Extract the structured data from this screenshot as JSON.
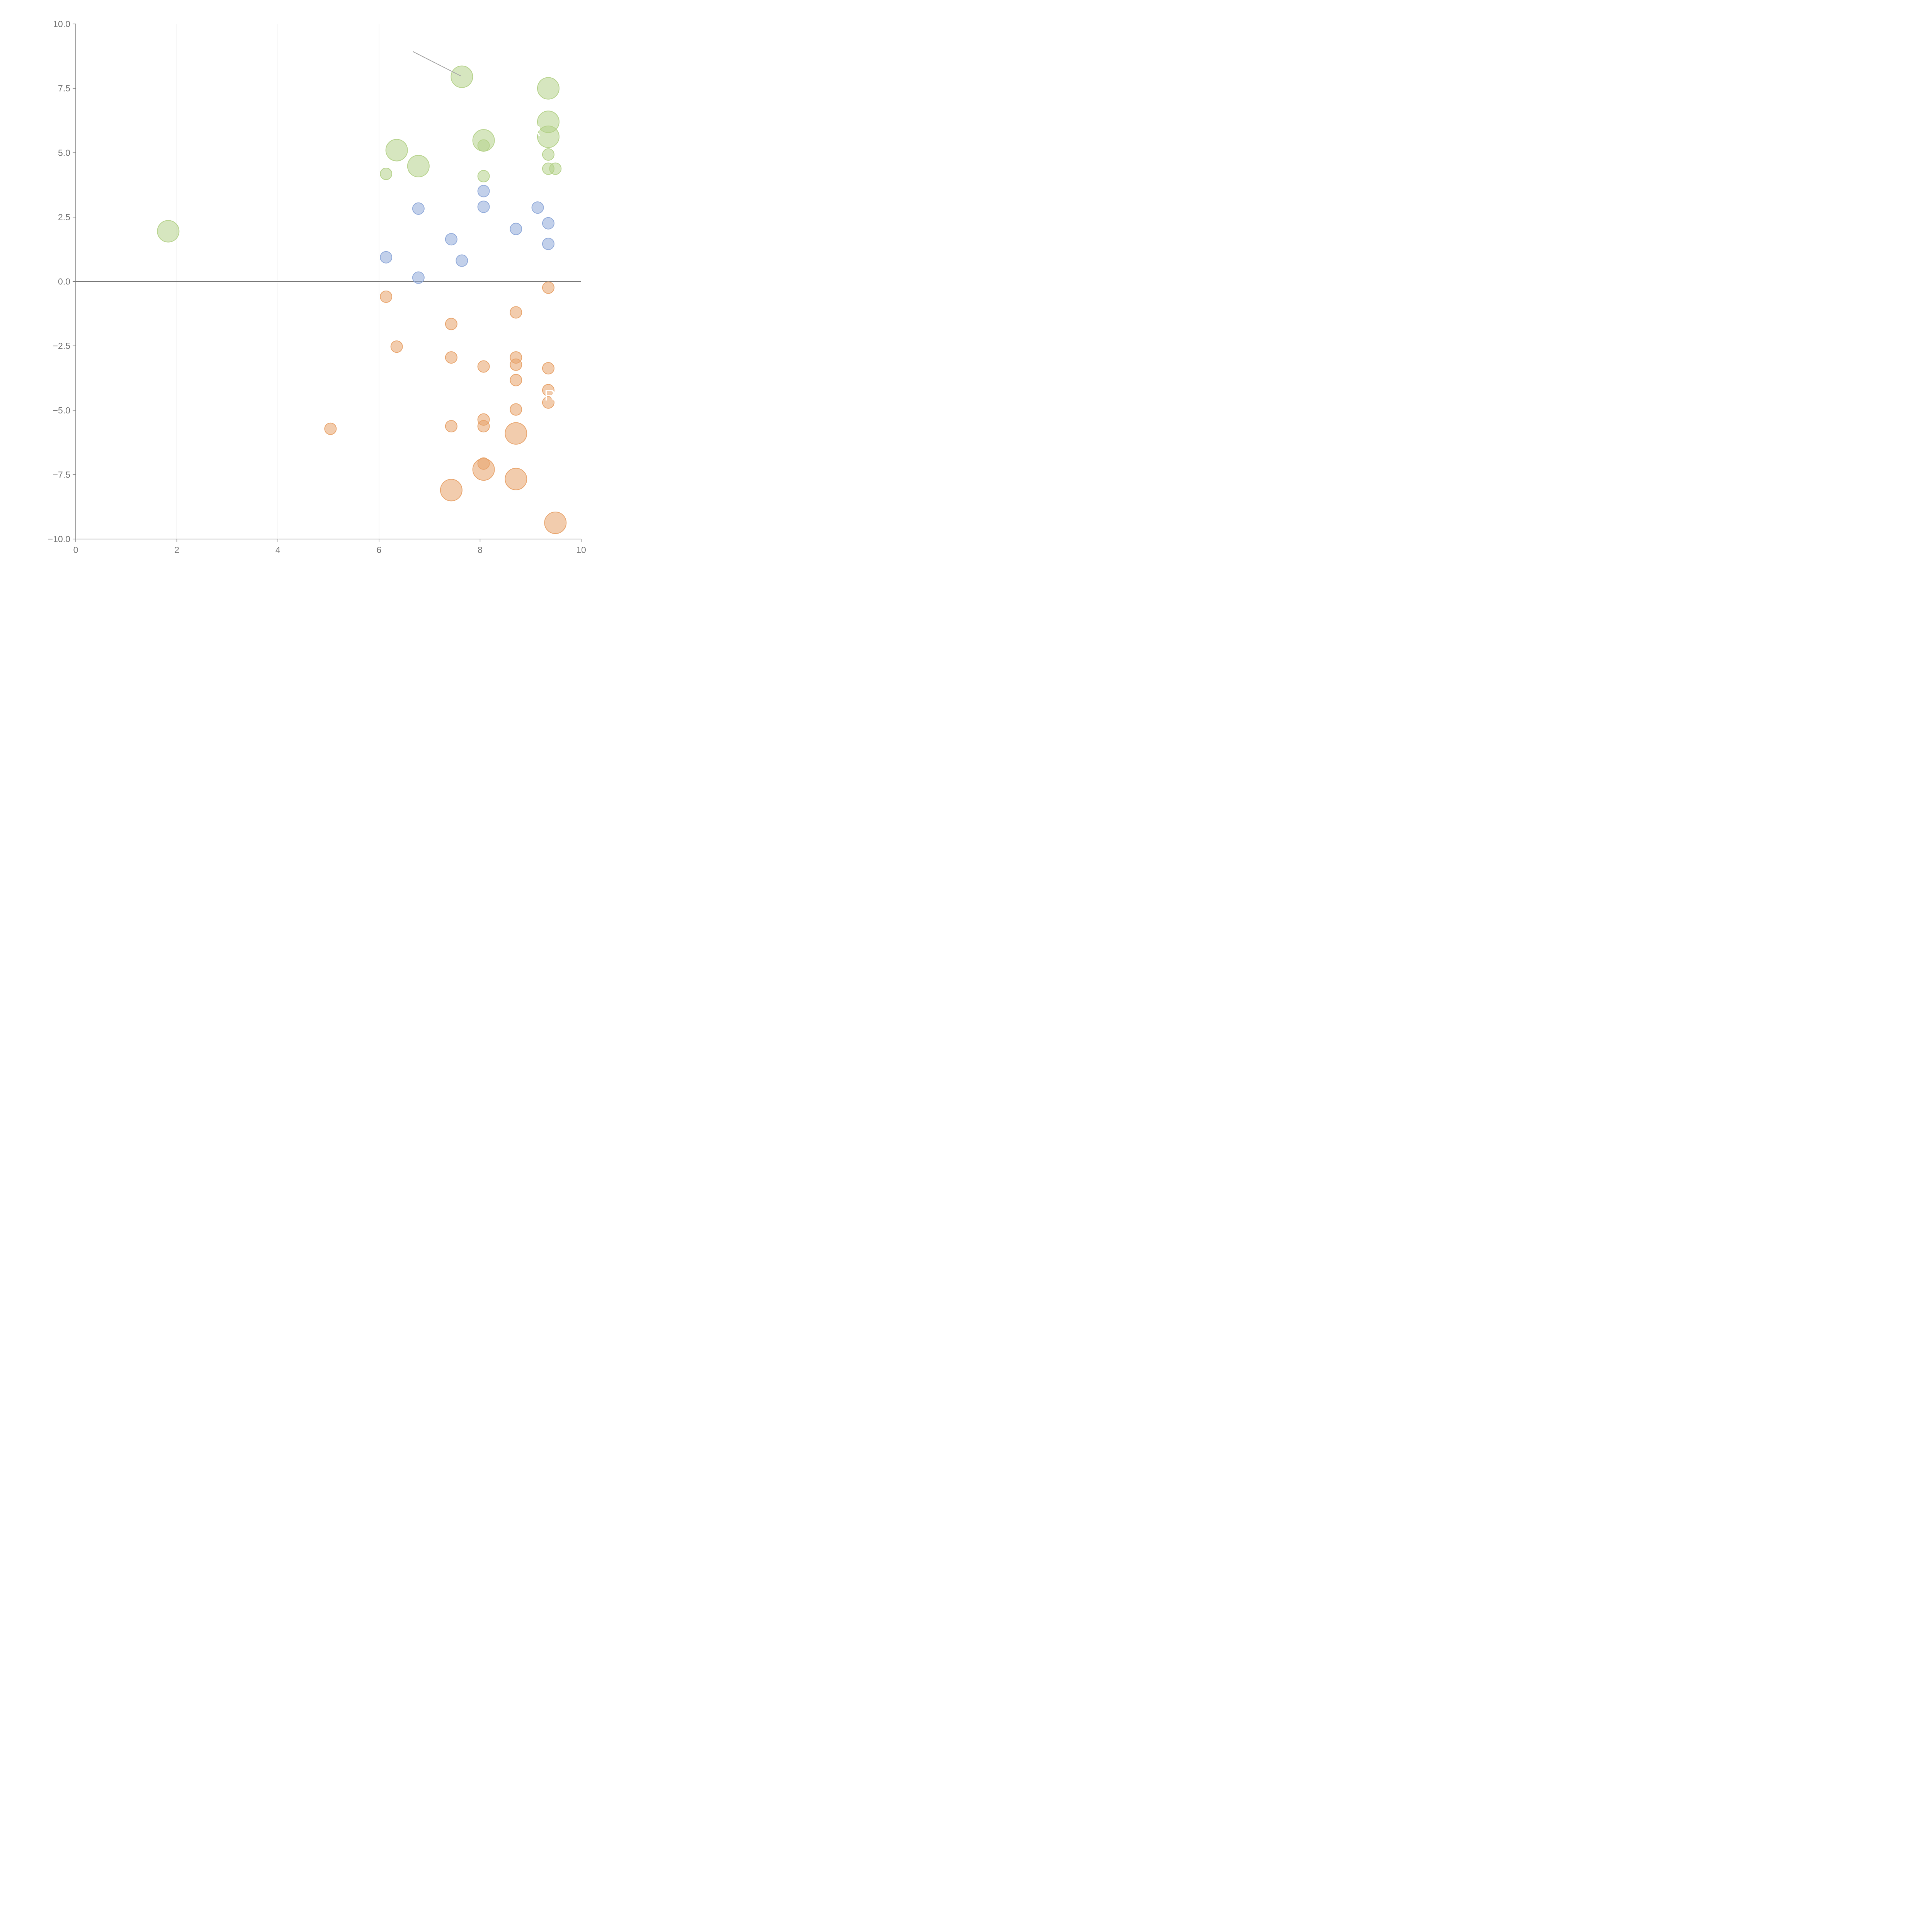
{
  "chart_data": {
    "type": "scatter",
    "title": "",
    "xlabel": "",
    "ylabel": "",
    "xlim": [
      0,
      10
    ],
    "ylim": [
      -10,
      10
    ],
    "x_ticks": [
      "0",
      "2",
      "4",
      "6",
      "8",
      "10"
    ],
    "y_ticks": [
      "10.0",
      "7.5",
      "5.0",
      "2.5",
      "0.0",
      "−2.5",
      "−5.0",
      "−7.5",
      "−10.0"
    ],
    "grid": "vertical",
    "zero_line": true,
    "legend": "none",
    "colors": {
      "green": "#b5d18a",
      "blue": "#8fa9d9",
      "orange": "#e8a36a",
      "axis": "#7a7a7a",
      "grid": "#dddddd"
    },
    "series": [
      {
        "name": "green",
        "color": "#b5d18a",
        "points": [
          {
            "x": 7.64,
            "y": 7.95,
            "size": "large"
          },
          {
            "x": 9.35,
            "y": 7.5,
            "size": "large"
          },
          {
            "x": 9.35,
            "y": 6.2,
            "size": "large"
          },
          {
            "x": 9.35,
            "y": 5.62,
            "size": "large"
          },
          {
            "x": 8.07,
            "y": 5.48,
            "size": "large"
          },
          {
            "x": 6.35,
            "y": 5.1,
            "size": "large"
          },
          {
            "x": 6.78,
            "y": 4.48,
            "size": "large"
          },
          {
            "x": 1.83,
            "y": 1.95,
            "size": "large"
          },
          {
            "x": 8.07,
            "y": 5.28,
            "size": "small"
          },
          {
            "x": 9.35,
            "y": 4.93,
            "size": "small"
          },
          {
            "x": 9.35,
            "y": 4.38,
            "size": "small"
          },
          {
            "x": 9.49,
            "y": 4.38,
            "size": "small"
          },
          {
            "x": 6.14,
            "y": 4.18,
            "size": "small"
          },
          {
            "x": 8.07,
            "y": 4.09,
            "size": "small"
          }
        ]
      },
      {
        "name": "blue",
        "color": "#8fa9d9",
        "points": [
          {
            "x": 8.07,
            "y": 3.51,
            "size": "small"
          },
          {
            "x": 8.07,
            "y": 2.9,
            "size": "small"
          },
          {
            "x": 9.14,
            "y": 2.87,
            "size": "small"
          },
          {
            "x": 6.78,
            "y": 2.83,
            "size": "small"
          },
          {
            "x": 9.35,
            "y": 2.26,
            "size": "small"
          },
          {
            "x": 8.71,
            "y": 2.04,
            "size": "small"
          },
          {
            "x": 7.43,
            "y": 1.64,
            "size": "small"
          },
          {
            "x": 9.35,
            "y": 1.46,
            "size": "small"
          },
          {
            "x": 6.14,
            "y": 0.94,
            "size": "small"
          },
          {
            "x": 7.64,
            "y": 0.81,
            "size": "small"
          },
          {
            "x": 6.78,
            "y": 0.15,
            "size": "small"
          }
        ]
      },
      {
        "name": "orange",
        "color": "#e8a36a",
        "points": [
          {
            "x": 9.35,
            "y": -0.24,
            "size": "small"
          },
          {
            "x": 6.14,
            "y": -0.59,
            "size": "small"
          },
          {
            "x": 8.71,
            "y": -1.2,
            "size": "small"
          },
          {
            "x": 7.43,
            "y": -1.65,
            "size": "small"
          },
          {
            "x": 6.35,
            "y": -2.53,
            "size": "small"
          },
          {
            "x": 7.43,
            "y": -2.95,
            "size": "small"
          },
          {
            "x": 8.71,
            "y": -2.95,
            "size": "small"
          },
          {
            "x": 8.71,
            "y": -3.23,
            "size": "small"
          },
          {
            "x": 8.07,
            "y": -3.3,
            "size": "small"
          },
          {
            "x": 9.35,
            "y": -3.37,
            "size": "small"
          },
          {
            "x": 8.71,
            "y": -3.83,
            "size": "small"
          },
          {
            "x": 9.35,
            "y": -4.22,
            "size": "small"
          },
          {
            "x": 9.35,
            "y": -4.7,
            "size": "small"
          },
          {
            "x": 8.71,
            "y": -4.97,
            "size": "small"
          },
          {
            "x": 8.07,
            "y": -5.36,
            "size": "small"
          },
          {
            "x": 8.07,
            "y": -5.62,
            "size": "small"
          },
          {
            "x": 7.43,
            "y": -5.62,
            "size": "small"
          },
          {
            "x": 5.04,
            "y": -5.72,
            "size": "small"
          },
          {
            "x": 8.07,
            "y": -7.07,
            "size": "small"
          },
          {
            "x": 8.71,
            "y": -5.9,
            "size": "large"
          },
          {
            "x": 8.07,
            "y": -7.3,
            "size": "large"
          },
          {
            "x": 8.71,
            "y": -7.67,
            "size": "large"
          },
          {
            "x": 7.43,
            "y": -8.1,
            "size": "large"
          },
          {
            "x": 9.49,
            "y": -9.37,
            "size": "large"
          }
        ]
      }
    ],
    "annotations": [
      {
        "text": "R",
        "x": 9.1,
        "y": 5.85
      },
      {
        "text": "R",
        "x": 9.38,
        "y": -4.41
      }
    ]
  }
}
